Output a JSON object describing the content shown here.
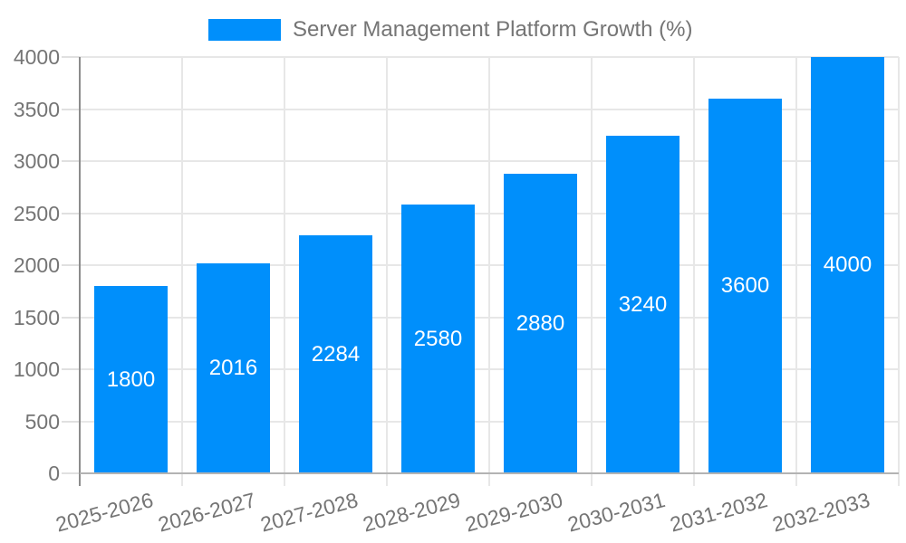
{
  "chart_data": {
    "type": "bar",
    "legend": "Server Management Platform Growth (%)",
    "legend_position": "top",
    "categories": [
      "2025-2026",
      "2026-2027",
      "2027-2028",
      "2028-2029",
      "2029-2030",
      "2030-2031",
      "2031-2032",
      "2032-2033"
    ],
    "values": [
      1800,
      2016,
      2284,
      2580,
      2880,
      3240,
      3600,
      4000
    ],
    "bar_labels": [
      "1800",
      "2016",
      "2284",
      "2580",
      "2880",
      "3240",
      "3600",
      "4000"
    ],
    "ytick_labels": [
      "0",
      "500",
      "1000",
      "1500",
      "2000",
      "2500",
      "3000",
      "3500",
      "4000"
    ],
    "yticks": [
      0,
      500,
      1000,
      1500,
      2000,
      2500,
      3000,
      3500,
      4000
    ],
    "ylim": [
      0,
      4000
    ],
    "xlabel": "",
    "ylabel": "",
    "grid": "both",
    "colors": {
      "bar": "#008ffb",
      "bar_label": "#ffffff",
      "axis_text": "#757575",
      "grid_line": "#e7e7e7",
      "y_axis_line": "#8c8c8c",
      "x_base_line": "#b3b3b3",
      "background": "#ffffff"
    }
  }
}
